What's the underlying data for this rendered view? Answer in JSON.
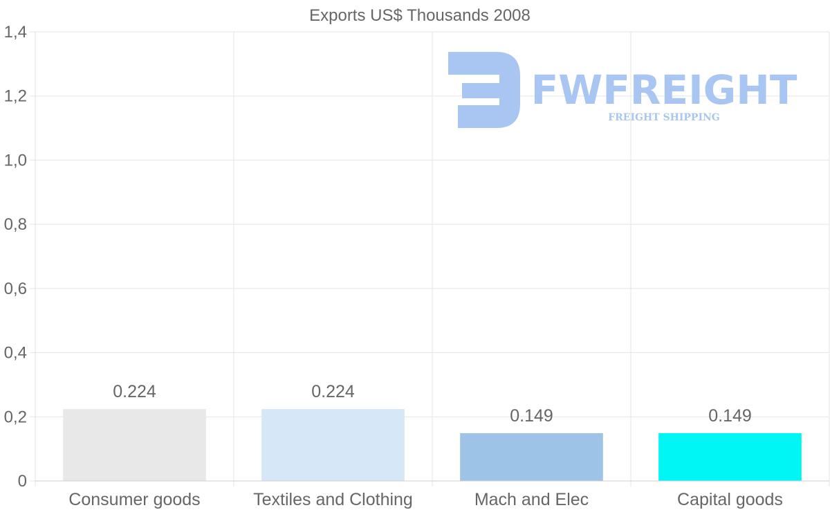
{
  "chart_data": {
    "type": "bar",
    "title": "Exports US$ Thousands 2008",
    "categories": [
      "Consumer goods",
      "Textiles and Clothing",
      "Mach and Elec",
      "Capital goods"
    ],
    "values": [
      0.224,
      0.224,
      0.149,
      0.149
    ],
    "value_labels": [
      "0.224",
      "0.224",
      "0.149",
      "0.149"
    ],
    "colors": [
      "#e8e8e8",
      "#d6e7f8",
      "#9dc3e6",
      "#00f5f5"
    ],
    "ylim": [
      0,
      1.4
    ],
    "yticks": [
      0,
      0.2,
      0.4,
      0.6,
      0.8,
      1.0,
      1.2,
      1.4
    ],
    "ytick_labels": [
      "0",
      "0,2",
      "0,4",
      "0,6",
      "0,8",
      "1,0",
      "1,2",
      "1,4"
    ],
    "xlabel": "",
    "ylabel": "",
    "grid": true
  },
  "watermark": {
    "brand": "FWFREIGHT",
    "tagline": "FREIGHT SHIPPING",
    "color": "#a9c6f2"
  }
}
